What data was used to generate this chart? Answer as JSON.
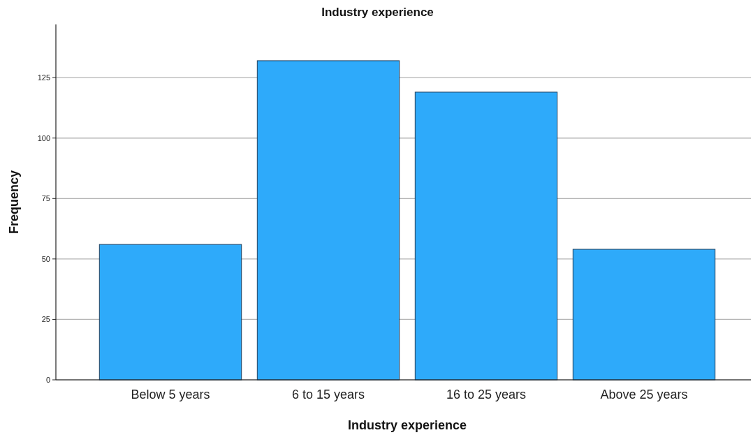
{
  "chart_data": {
    "type": "bar",
    "title": "Industry experience",
    "xlabel": "Industry experience",
    "ylabel": "Frequency",
    "categories": [
      "Below 5 years",
      "6 to 15 years",
      "16 to 25 years",
      "Above 25 years"
    ],
    "values": [
      56,
      132,
      119,
      54
    ],
    "color": "#2eaafa",
    "ylim": [
      0,
      147
    ],
    "yticks": [
      0,
      25,
      50,
      75,
      100,
      125
    ],
    "grid": "y"
  }
}
